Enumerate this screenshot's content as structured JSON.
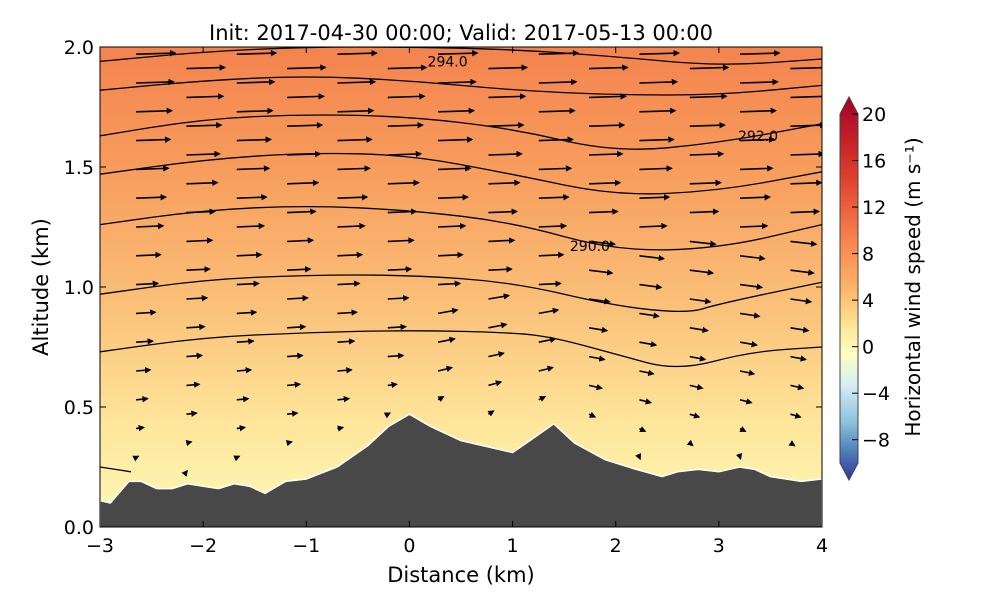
{
  "chart_data": {
    "type": "heatmap",
    "title": "Init: 2017-04-30 00:00; Valid: 2017-05-13 00:00",
    "xlabel": "Distance (km)",
    "ylabel": "Altitude (km)",
    "xlim": [
      -3,
      4
    ],
    "ylim": [
      0,
      2.0
    ],
    "xticks": [
      "−3",
      "−2",
      "−1",
      "0",
      "1",
      "2",
      "3",
      "4"
    ],
    "xtick_values": [
      -3,
      -2,
      -1,
      0,
      1,
      2,
      3,
      4
    ],
    "yticks": [
      "0.0",
      "0.5",
      "1.0",
      "1.5",
      "2.0"
    ],
    "ytick_values": [
      0,
      0.5,
      1.0,
      1.5,
      2.0
    ],
    "colorbar": {
      "label": "Horizontal wind speed (m s⁻¹)",
      "range": [
        -10,
        20
      ],
      "ticks": [
        "20",
        "16",
        "12",
        "8",
        "4",
        "0",
        "−4",
        "−8"
      ],
      "tick_values": [
        20,
        16,
        12,
        8,
        4,
        0,
        -4,
        -8
      ],
      "extend": "both"
    },
    "terrain": [
      [
        -3,
        0.11
      ],
      [
        -2.9,
        0.1
      ],
      [
        -2.72,
        0.19
      ],
      [
        -2.6,
        0.19
      ],
      [
        -2.45,
        0.16
      ],
      [
        -2.3,
        0.16
      ],
      [
        -2.15,
        0.18
      ],
      [
        -2.0,
        0.17
      ],
      [
        -1.85,
        0.16
      ],
      [
        -1.7,
        0.18
      ],
      [
        -1.55,
        0.17
      ],
      [
        -1.4,
        0.14
      ],
      [
        -1.2,
        0.19
      ],
      [
        -1.0,
        0.2
      ],
      [
        -0.7,
        0.25
      ],
      [
        -0.4,
        0.34
      ],
      [
        -0.2,
        0.42
      ],
      [
        0.0,
        0.47
      ],
      [
        0.2,
        0.42
      ],
      [
        0.5,
        0.36
      ],
      [
        0.8,
        0.33
      ],
      [
        1.0,
        0.31
      ],
      [
        1.2,
        0.37
      ],
      [
        1.4,
        0.43
      ],
      [
        1.6,
        0.35
      ],
      [
        1.9,
        0.28
      ],
      [
        2.2,
        0.24
      ],
      [
        2.45,
        0.21
      ],
      [
        2.6,
        0.23
      ],
      [
        2.8,
        0.24
      ],
      [
        3.0,
        0.23
      ],
      [
        3.2,
        0.25
      ],
      [
        3.35,
        0.24
      ],
      [
        3.5,
        0.21
      ],
      [
        3.8,
        0.19
      ],
      [
        4.0,
        0.2
      ]
    ],
    "contours": [
      [
        [
          -3,
          1.94
        ],
        [
          -2,
          1.98
        ],
        [
          -1,
          2.0
        ],
        [
          0,
          2.0
        ],
        [
          1,
          1.99
        ],
        [
          2,
          1.96
        ],
        [
          3,
          1.92
        ],
        [
          4,
          1.95
        ]
      ],
      [
        [
          -3,
          1.82
        ],
        [
          -2,
          1.86
        ],
        [
          -1,
          1.88
        ],
        [
          0,
          1.86
        ],
        [
          1,
          1.82
        ],
        [
          2,
          1.8
        ],
        [
          3,
          1.8
        ],
        [
          4,
          1.84
        ]
      ],
      [
        [
          -3,
          1.63
        ],
        [
          -2,
          1.7
        ],
        [
          -1,
          1.72
        ],
        [
          0,
          1.71
        ],
        [
          1,
          1.66
        ],
        [
          2,
          1.56
        ],
        [
          3,
          1.6
        ],
        [
          4,
          1.68
        ]
      ],
      [
        [
          -3,
          1.47
        ],
        [
          -2,
          1.53
        ],
        [
          -1,
          1.56
        ],
        [
          0,
          1.55
        ],
        [
          1,
          1.47
        ],
        [
          2,
          1.38
        ],
        [
          3,
          1.4
        ],
        [
          4,
          1.48
        ]
      ],
      [
        [
          -3,
          1.26
        ],
        [
          -2,
          1.32
        ],
        [
          -1,
          1.34
        ],
        [
          0,
          1.32
        ],
        [
          1,
          1.27
        ],
        [
          2,
          1.15
        ],
        [
          3,
          1.16
        ],
        [
          4,
          1.26
        ]
      ],
      [
        [
          -3,
          0.97
        ],
        [
          -2,
          1.03
        ],
        [
          -1,
          1.05
        ],
        [
          0,
          1.05
        ],
        [
          1,
          1.02
        ],
        [
          2,
          0.92
        ],
        [
          2.7,
          0.89
        ],
        [
          3,
          0.93
        ],
        [
          4,
          1.02
        ]
      ],
      [
        [
          -3,
          0.73
        ],
        [
          -2,
          0.79
        ],
        [
          -1,
          0.81
        ],
        [
          0,
          0.82
        ],
        [
          1,
          0.81
        ],
        [
          1.4,
          0.79
        ],
        [
          2,
          0.72
        ],
        [
          2.6,
          0.65
        ],
        [
          3.3,
          0.73
        ],
        [
          4,
          0.75
        ]
      ],
      [
        [
          -3,
          0.25
        ],
        [
          -2.7,
          0.23
        ]
      ]
    ],
    "contour_labels": [
      {
        "text": "294.0",
        "x": 0.37,
        "y": 1.94
      },
      {
        "text": "292.0",
        "x": 3.38,
        "y": 1.63
      },
      {
        "text": "290.0",
        "x": 1.75,
        "y": 1.17
      }
    ],
    "wind_speed_profile": {
      "altitude_km": [
        0.2,
        0.5,
        1.0,
        1.5,
        2.0
      ],
      "speed_ms": [
        1,
        3,
        6,
        9,
        11
      ]
    }
  }
}
